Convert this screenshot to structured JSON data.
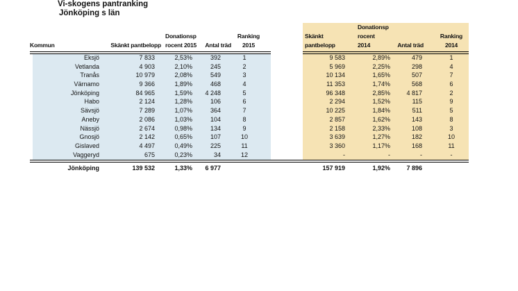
{
  "page": {
    "title": "Vi-skogens pantranking",
    "subtitle": "Jönköping s län"
  },
  "colors": {
    "table_2015_fill": "#dce9f1",
    "table_2014_fill": "#f6e3b4",
    "rule": "#000000"
  },
  "table_2015": {
    "headers": {
      "kommun": "Kommun",
      "amount": "Skänkt pantbelopp",
      "percent": [
        "Donationsp",
        "rocent 2015"
      ],
      "trees": "Antal träd",
      "ranking": [
        "Ranking",
        "2015"
      ]
    },
    "rows": [
      {
        "kommun": "Eksjö",
        "amount": "7 833",
        "percent": "2,53%",
        "trees": "392",
        "ranking": "1"
      },
      {
        "kommun": "Vetlanda",
        "amount": "4 903",
        "percent": "2,10%",
        "trees": "245",
        "ranking": "2"
      },
      {
        "kommun": "Tranås",
        "amount": "10 979",
        "percent": "2,08%",
        "trees": "549",
        "ranking": "3"
      },
      {
        "kommun": "Värnamo",
        "amount": "9 366",
        "percent": "1,89%",
        "trees": "468",
        "ranking": "4"
      },
      {
        "kommun": "Jönköping",
        "amount": "84 965",
        "percent": "1,59%",
        "trees": "4 248",
        "ranking": "5"
      },
      {
        "kommun": "Habo",
        "amount": "2 124",
        "percent": "1,28%",
        "trees": "106",
        "ranking": "6"
      },
      {
        "kommun": "Sävsjö",
        "amount": "7 289",
        "percent": "1,07%",
        "trees": "364",
        "ranking": "7"
      },
      {
        "kommun": "Aneby",
        "amount": "2 086",
        "percent": "1,03%",
        "trees": "104",
        "ranking": "8"
      },
      {
        "kommun": "Nässjö",
        "amount": "2 674",
        "percent": "0,98%",
        "trees": "134",
        "ranking": "9"
      },
      {
        "kommun": "Gnosjö",
        "amount": "2 142",
        "percent": "0,65%",
        "trees": "107",
        "ranking": "10"
      },
      {
        "kommun": "Gislaved",
        "amount": "4 497",
        "percent": "0,49%",
        "trees": "225",
        "ranking": "11"
      },
      {
        "kommun": "Vaggeryd",
        "amount": "675",
        "percent": "0,23%",
        "trees": "34",
        "ranking": "12"
      }
    ],
    "total": {
      "kommun": "Jönköping",
      "amount": "139 532",
      "percent": "1,33%",
      "trees": "6 977",
      "ranking": ""
    }
  },
  "table_2014": {
    "headers": {
      "amount": [
        "Skänkt",
        "pantbelopp"
      ],
      "percent": [
        "Donationsp",
        "rocent",
        "2014"
      ],
      "trees": "Antal träd",
      "ranking": [
        "Ranking",
        "2014"
      ]
    },
    "rows": [
      {
        "amount": "9 583",
        "percent": "2,89%",
        "trees": "479",
        "ranking": "1"
      },
      {
        "amount": "5 969",
        "percent": "2,25%",
        "trees": "298",
        "ranking": "4"
      },
      {
        "amount": "10 134",
        "percent": "1,65%",
        "trees": "507",
        "ranking": "7"
      },
      {
        "amount": "11 353",
        "percent": "1,74%",
        "trees": "568",
        "ranking": "6"
      },
      {
        "amount": "96 348",
        "percent": "2,85%",
        "trees": "4 817",
        "ranking": "2"
      },
      {
        "amount": "2 294",
        "percent": "1,52%",
        "trees": "115",
        "ranking": "9"
      },
      {
        "amount": "10 225",
        "percent": "1,84%",
        "trees": "511",
        "ranking": "5"
      },
      {
        "amount": "2 857",
        "percent": "1,62%",
        "trees": "143",
        "ranking": "8"
      },
      {
        "amount": "2 158",
        "percent": "2,33%",
        "trees": "108",
        "ranking": "3"
      },
      {
        "amount": "3 639",
        "percent": "1,27%",
        "trees": "182",
        "ranking": "10"
      },
      {
        "amount": "3 360",
        "percent": "1,17%",
        "trees": "168",
        "ranking": "11"
      },
      {
        "amount": "-",
        "percent": "-",
        "trees": "-",
        "ranking": "-"
      }
    ],
    "total": {
      "amount": "157 919",
      "percent": "1,92%",
      "trees": "7 896",
      "ranking": ""
    }
  }
}
